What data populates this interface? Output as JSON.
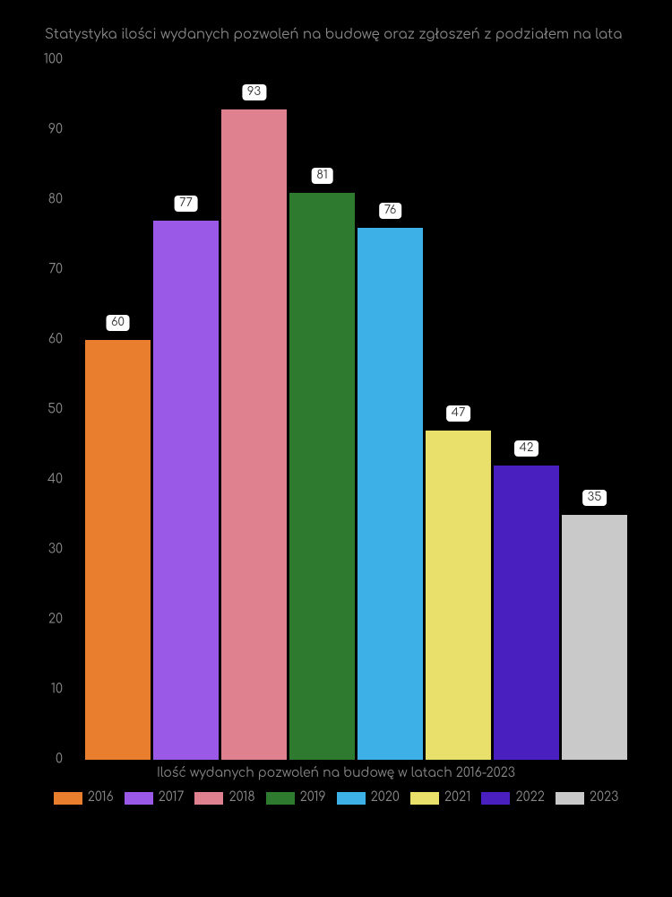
{
  "chart": {
    "type": "bar",
    "title": "Statystyka ilości wydanych pozwoleń na budowę oraz zgłoszeń z podziałem na lata",
    "xlabel": "Ilość wydanych pozwoleń na budowę w latach 2016-2023",
    "ylim": [
      0,
      100
    ],
    "ytick_step": 10,
    "yticks": [
      "0",
      "10",
      "20",
      "30",
      "40",
      "50",
      "60",
      "70",
      "80",
      "90",
      "100"
    ],
    "background_color": "#000000",
    "text_color": "#888888",
    "title_fontsize": 15,
    "label_fontsize": 14,
    "bar_label_bg": "#ffffff",
    "bar_label_color": "#333333",
    "bars": [
      {
        "label": "2016",
        "value": 60,
        "color": "#e97f2e"
      },
      {
        "label": "2017",
        "value": 77,
        "color": "#9b59e8"
      },
      {
        "label": "2018",
        "value": 93,
        "color": "#e0818f"
      },
      {
        "label": "2019",
        "value": 81,
        "color": "#2e7a2e"
      },
      {
        "label": "2020",
        "value": 76,
        "color": "#3db0e8"
      },
      {
        "label": "2021",
        "value": 47,
        "color": "#e8e06b"
      },
      {
        "label": "2022",
        "value": 42,
        "color": "#4a1fbf"
      },
      {
        "label": "2023",
        "value": 35,
        "color": "#c9c9c9"
      }
    ]
  }
}
